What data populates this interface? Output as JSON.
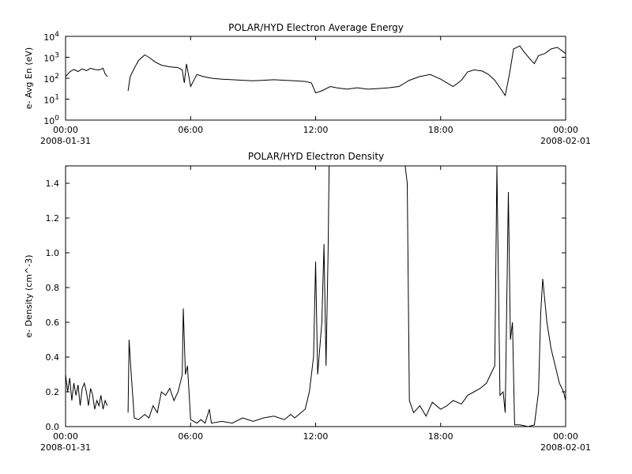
{
  "page": {
    "background": "#ffffff",
    "line_color": "#000000"
  },
  "chart_data": [
    {
      "type": "line",
      "title": "POLAR/HYD  Electron Average Energy",
      "ylabel": "e- Avg En (eV)",
      "yscale": "log",
      "ylim": [
        1,
        10000
      ],
      "y_ticks": [
        {
          "value": 1,
          "base": "10",
          "exp": "0"
        },
        {
          "value": 10,
          "base": "10",
          "exp": "1"
        },
        {
          "value": 100,
          "base": "10",
          "exp": "2"
        },
        {
          "value": 1000,
          "base": "10",
          "exp": "3"
        },
        {
          "value": 10000,
          "base": "10",
          "exp": "4"
        }
      ],
      "xlim": [
        0,
        24
      ],
      "x_unit": "hours since 2008-01-31 00:00",
      "x_ticks": [
        {
          "value": 0,
          "label": "00:00",
          "date": "2008-01-31"
        },
        {
          "value": 6,
          "label": "06:00",
          "date": ""
        },
        {
          "value": 12,
          "label": "12:00",
          "date": ""
        },
        {
          "value": 18,
          "label": "18:00",
          "date": ""
        },
        {
          "value": 24,
          "label": "00:00",
          "date": "2008-02-01"
        }
      ],
      "series": [
        {
          "segments": [
            [
              [
                0.0,
                120
              ],
              [
                0.2,
                200
              ],
              [
                0.4,
                260
              ],
              [
                0.6,
                210
              ],
              [
                0.8,
                280
              ],
              [
                1.0,
                230
              ],
              [
                1.2,
                300
              ],
              [
                1.4,
                260
              ],
              [
                1.6,
                250
              ],
              [
                1.8,
                300
              ],
              [
                1.9,
                160
              ],
              [
                2.0,
                120
              ]
            ],
            [
              [
                3.0,
                25
              ],
              [
                3.1,
                120
              ],
              [
                3.3,
                300
              ],
              [
                3.5,
                700
              ],
              [
                3.8,
                1300
              ],
              [
                4.0,
                1000
              ],
              [
                4.3,
                600
              ],
              [
                4.6,
                420
              ],
              [
                5.0,
                350
              ],
              [
                5.4,
                320
              ],
              [
                5.6,
                250
              ],
              [
                5.7,
                60
              ],
              [
                5.8,
                480
              ],
              [
                5.9,
                150
              ],
              [
                6.0,
                40
              ],
              [
                6.3,
                150
              ],
              [
                6.6,
                120
              ],
              [
                7.0,
                100
              ],
              [
                7.5,
                90
              ],
              [
                8.0,
                85
              ],
              [
                8.5,
                80
              ],
              [
                9.0,
                75
              ],
              [
                9.5,
                80
              ],
              [
                10.0,
                85
              ],
              [
                10.5,
                80
              ],
              [
                11.0,
                75
              ],
              [
                11.5,
                70
              ],
              [
                11.8,
                60
              ],
              [
                12.0,
                20
              ],
              [
                12.3,
                25
              ],
              [
                12.7,
                40
              ],
              [
                13.0,
                35
              ],
              [
                13.5,
                30
              ],
              [
                14.0,
                35
              ],
              [
                14.5,
                30
              ],
              [
                15.0,
                32
              ],
              [
                15.5,
                35
              ],
              [
                16.0,
                40
              ],
              [
                16.5,
                80
              ],
              [
                17.0,
                120
              ],
              [
                17.5,
                150
              ],
              [
                18.0,
                90
              ],
              [
                18.3,
                60
              ],
              [
                18.6,
                40
              ],
              [
                19.0,
                80
              ],
              [
                19.3,
                200
              ],
              [
                19.6,
                250
              ],
              [
                20.0,
                220
              ],
              [
                20.3,
                150
              ],
              [
                20.6,
                80
              ],
              [
                20.9,
                30
              ],
              [
                21.1,
                15
              ],
              [
                21.3,
                150
              ],
              [
                21.5,
                2500
              ],
              [
                21.8,
                3500
              ],
              [
                22.0,
                1800
              ],
              [
                22.3,
                800
              ],
              [
                22.5,
                500
              ],
              [
                22.7,
                1200
              ],
              [
                23.0,
                1500
              ],
              [
                23.3,
                2500
              ],
              [
                23.6,
                3000
              ],
              [
                24.0,
                1500
              ]
            ]
          ]
        }
      ]
    },
    {
      "type": "line",
      "title": "POLAR/HYD  Electron Density",
      "ylabel": "e- Density (cm^-3)",
      "yscale": "linear",
      "ylim": [
        0,
        1.5
      ],
      "y_ticks": [
        {
          "value": 0.0,
          "label": "0.0"
        },
        {
          "value": 0.2,
          "label": "0.2"
        },
        {
          "value": 0.4,
          "label": "0.4"
        },
        {
          "value": 0.6,
          "label": "0.6"
        },
        {
          "value": 0.8,
          "label": "0.8"
        },
        {
          "value": 1.0,
          "label": "1.0"
        },
        {
          "value": 1.2,
          "label": "1.2"
        },
        {
          "value": 1.4,
          "label": "1.4"
        }
      ],
      "xlim": [
        0,
        24
      ],
      "x_unit": "hours since 2008-01-31 00:00",
      "x_ticks": [
        {
          "value": 0,
          "label": "00:00",
          "date": "2008-01-31"
        },
        {
          "value": 6,
          "label": "06:00",
          "date": ""
        },
        {
          "value": 12,
          "label": "12:00",
          "date": ""
        },
        {
          "value": 18,
          "label": "18:00",
          "date": ""
        },
        {
          "value": 24,
          "label": "00:00",
          "date": "2008-02-01"
        }
      ],
      "series": [
        {
          "segments": [
            [
              [
                0.0,
                0.3
              ],
              [
                0.1,
                0.2
              ],
              [
                0.2,
                0.28
              ],
              [
                0.3,
                0.15
              ],
              [
                0.4,
                0.25
              ],
              [
                0.5,
                0.18
              ],
              [
                0.6,
                0.24
              ],
              [
                0.7,
                0.12
              ],
              [
                0.8,
                0.22
              ],
              [
                0.9,
                0.25
              ],
              [
                1.0,
                0.2
              ],
              [
                1.1,
                0.12
              ],
              [
                1.2,
                0.22
              ],
              [
                1.3,
                0.18
              ],
              [
                1.4,
                0.1
              ],
              [
                1.5,
                0.15
              ],
              [
                1.6,
                0.12
              ],
              [
                1.7,
                0.18
              ],
              [
                1.8,
                0.1
              ],
              [
                1.9,
                0.15
              ],
              [
                2.0,
                0.12
              ]
            ],
            [
              [
                3.0,
                0.08
              ],
              [
                3.05,
                0.5
              ],
              [
                3.15,
                0.3
              ],
              [
                3.3,
                0.05
              ],
              [
                3.5,
                0.04
              ],
              [
                3.8,
                0.07
              ],
              [
                4.0,
                0.05
              ],
              [
                4.2,
                0.12
              ],
              [
                4.4,
                0.08
              ],
              [
                4.6,
                0.2
              ],
              [
                4.8,
                0.18
              ],
              [
                5.0,
                0.22
              ],
              [
                5.2,
                0.15
              ],
              [
                5.4,
                0.2
              ],
              [
                5.5,
                0.25
              ],
              [
                5.6,
                0.3
              ],
              [
                5.65,
                0.68
              ],
              [
                5.75,
                0.3
              ],
              [
                5.85,
                0.35
              ],
              [
                6.0,
                0.04
              ],
              [
                6.3,
                0.02
              ],
              [
                6.5,
                0.04
              ],
              [
                6.7,
                0.02
              ],
              [
                6.9,
                0.1
              ],
              [
                7.0,
                0.02
              ],
              [
                7.5,
                0.03
              ],
              [
                8.0,
                0.02
              ],
              [
                8.5,
                0.05
              ],
              [
                9.0,
                0.03
              ],
              [
                9.5,
                0.05
              ],
              [
                10.0,
                0.06
              ],
              [
                10.5,
                0.04
              ],
              [
                10.8,
                0.07
              ],
              [
                11.0,
                0.05
              ],
              [
                11.3,
                0.08
              ],
              [
                11.5,
                0.1
              ],
              [
                11.7,
                0.2
              ],
              [
                11.9,
                0.4
              ],
              [
                12.0,
                0.95
              ],
              [
                12.1,
                0.3
              ],
              [
                12.3,
                0.6
              ],
              [
                12.4,
                1.05
              ],
              [
                12.5,
                0.35
              ],
              [
                12.6,
                1.0
              ],
              [
                12.65,
                1.5
              ],
              [
                12.7,
                1.5
              ]
            ],
            [
              [
                16.3,
                1.5
              ],
              [
                16.4,
                1.4
              ],
              [
                16.5,
                0.15
              ],
              [
                16.7,
                0.08
              ],
              [
                17.0,
                0.12
              ],
              [
                17.3,
                0.06
              ],
              [
                17.6,
                0.14
              ],
              [
                18.0,
                0.1
              ],
              [
                18.3,
                0.12
              ],
              [
                18.6,
                0.15
              ],
              [
                19.0,
                0.13
              ],
              [
                19.3,
                0.18
              ],
              [
                19.6,
                0.2
              ],
              [
                19.9,
                0.22
              ],
              [
                20.2,
                0.25
              ],
              [
                20.4,
                0.3
              ],
              [
                20.6,
                0.35
              ],
              [
                20.7,
                1.5
              ],
              [
                20.75,
                1.05
              ],
              [
                20.85,
                0.18
              ],
              [
                21.0,
                0.2
              ],
              [
                21.1,
                0.08
              ],
              [
                21.25,
                1.35
              ],
              [
                21.35,
                0.5
              ],
              [
                21.45,
                0.6
              ],
              [
                21.55,
                0.01
              ],
              [
                21.8,
                0.01
              ],
              [
                22.2,
                0.0
              ],
              [
                22.5,
                0.01
              ],
              [
                22.7,
                0.2
              ],
              [
                22.8,
                0.65
              ],
              [
                22.9,
                0.85
              ],
              [
                23.1,
                0.6
              ],
              [
                23.3,
                0.45
              ],
              [
                23.5,
                0.35
              ],
              [
                23.7,
                0.25
              ],
              [
                23.9,
                0.2
              ],
              [
                24.0,
                0.15
              ]
            ]
          ]
        }
      ]
    }
  ]
}
